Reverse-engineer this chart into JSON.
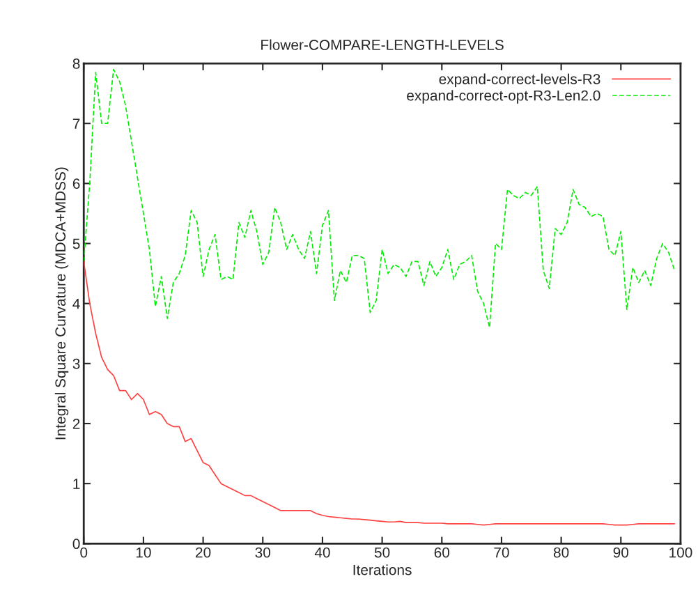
{
  "chart_data": {
    "type": "line",
    "title": "Flower-COMPARE-LENGTH-LEVELS",
    "xlabel": "Iterations",
    "ylabel": "Integral Square Curvature (MDCA+MDSS)",
    "x": [
      0,
      1,
      2,
      3,
      4,
      5,
      6,
      7,
      8,
      9,
      10,
      11,
      12,
      13,
      14,
      15,
      16,
      17,
      18,
      19,
      20,
      21,
      22,
      23,
      24,
      25,
      26,
      27,
      28,
      29,
      30,
      31,
      32,
      33,
      34,
      35,
      36,
      37,
      38,
      39,
      40,
      41,
      42,
      43,
      44,
      45,
      46,
      47,
      48,
      49,
      50,
      51,
      52,
      53,
      54,
      55,
      56,
      57,
      58,
      59,
      60,
      61,
      62,
      63,
      64,
      65,
      66,
      67,
      68,
      69,
      70,
      71,
      72,
      73,
      74,
      75,
      76,
      77,
      78,
      79,
      80,
      81,
      82,
      83,
      84,
      85,
      86,
      87,
      88,
      89,
      90,
      91,
      92,
      93,
      94,
      95,
      96,
      97,
      98,
      99
    ],
    "series": [
      {
        "name": "expand-correct-levels-R3",
        "color": "#ff4040",
        "line_style": "solid",
        "values": [
          4.7,
          4.0,
          3.5,
          3.1,
          2.9,
          2.8,
          2.55,
          2.55,
          2.4,
          2.5,
          2.4,
          2.15,
          2.2,
          2.15,
          2.0,
          1.95,
          1.95,
          1.7,
          1.75,
          1.55,
          1.35,
          1.3,
          1.15,
          1.0,
          0.95,
          0.9,
          0.85,
          0.8,
          0.8,
          0.75,
          0.7,
          0.65,
          0.6,
          0.55,
          0.55,
          0.55,
          0.55,
          0.55,
          0.55,
          0.5,
          0.47,
          0.45,
          0.44,
          0.43,
          0.42,
          0.41,
          0.41,
          0.4,
          0.39,
          0.38,
          0.37,
          0.36,
          0.36,
          0.37,
          0.35,
          0.35,
          0.35,
          0.34,
          0.34,
          0.34,
          0.34,
          0.33,
          0.33,
          0.33,
          0.33,
          0.33,
          0.32,
          0.31,
          0.32,
          0.33,
          0.33,
          0.33,
          0.33,
          0.33,
          0.33,
          0.33,
          0.33,
          0.33,
          0.33,
          0.33,
          0.33,
          0.33,
          0.33,
          0.33,
          0.33,
          0.33,
          0.33,
          0.33,
          0.32,
          0.31,
          0.31,
          0.31,
          0.32,
          0.33,
          0.33,
          0.33,
          0.33,
          0.33,
          0.33,
          0.33
        ]
      },
      {
        "name": "expand-correct-opt-R3-Len2.0",
        "color": "#00ee00",
        "line_style": "dashed",
        "values": [
          4.7,
          6.0,
          7.85,
          7.0,
          7.0,
          7.9,
          7.7,
          7.3,
          6.7,
          6.1,
          5.5,
          4.9,
          3.95,
          4.45,
          3.75,
          4.35,
          4.5,
          4.8,
          5.55,
          5.35,
          4.45,
          4.9,
          5.15,
          4.4,
          4.45,
          4.4,
          5.35,
          5.1,
          5.55,
          5.2,
          4.65,
          4.85,
          5.6,
          5.35,
          4.9,
          5.15,
          4.9,
          4.75,
          5.2,
          4.5,
          5.3,
          5.55,
          4.05,
          4.55,
          4.35,
          4.8,
          4.8,
          4.75,
          3.85,
          4.05,
          4.9,
          4.5,
          4.65,
          4.6,
          4.45,
          4.7,
          4.7,
          4.3,
          4.7,
          4.45,
          4.6,
          4.9,
          4.4,
          4.65,
          4.7,
          4.8,
          4.2,
          4.0,
          3.6,
          5.0,
          4.9,
          5.9,
          5.8,
          5.75,
          5.85,
          5.8,
          5.95,
          4.55,
          4.25,
          5.25,
          5.15,
          5.35,
          5.9,
          5.65,
          5.6,
          5.45,
          5.5,
          5.45,
          4.9,
          4.8,
          5.2,
          3.9,
          4.6,
          4.35,
          4.55,
          4.3,
          4.75,
          5.0,
          4.85,
          4.55
        ]
      }
    ],
    "xlim": [
      0,
      100
    ],
    "ylim": [
      0,
      8
    ],
    "xticks": [
      0,
      10,
      20,
      30,
      40,
      50,
      60,
      70,
      80,
      90,
      100
    ],
    "yticks": [
      0,
      1,
      2,
      3,
      4,
      5,
      6,
      7,
      8
    ],
    "grid": false,
    "legend": "top right"
  }
}
